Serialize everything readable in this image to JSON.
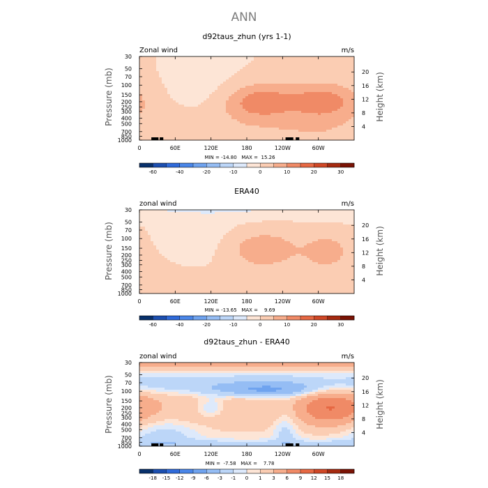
{
  "page_title": "ANN",
  "chart_data": [
    {
      "type": "heatmap",
      "title": "d92taus_zhun (yrs 1-1)",
      "left_label": "Zonal wind",
      "right_label": "m/s",
      "ylabel": "Pressure (mb)",
      "ylabel_right": "Height (km)",
      "x_ticks": [
        "0",
        "60E",
        "120E",
        "180",
        "120W",
        "60W"
      ],
      "x_tick_lon": [
        0,
        60,
        120,
        180,
        240,
        300
      ],
      "xlim": [
        0,
        360
      ],
      "y_ticks": [
        "30",
        "50",
        "70",
        "100",
        "150",
        "200",
        "250",
        "300",
        "400",
        "500",
        "700",
        "850",
        "1000"
      ],
      "y_tick_p": [
        30,
        50,
        70,
        100,
        150,
        200,
        250,
        300,
        400,
        500,
        700,
        850,
        1000
      ],
      "ylim": [
        1000,
        30
      ],
      "height_ticks": [
        "4",
        "8",
        "12",
        "16",
        "20"
      ],
      "height_km": [
        4,
        8,
        12,
        16,
        20
      ],
      "stats": "MIN = -14.80   MAX =  15.26",
      "min": -14.8,
      "max": 15.26,
      "colorbar": {
        "labels": [
          "-60",
          "-40",
          "-20",
          "-10",
          "0",
          "10",
          "20",
          "30"
        ],
        "label_boundary_index": [
          1,
          3,
          5,
          7,
          9,
          11,
          13,
          15
        ],
        "colors": [
          "#08306b",
          "#1c4fb0",
          "#2f6ad9",
          "#4a86e8",
          "#6fa3ef",
          "#95bdf4",
          "#bcd6f8",
          "#dde9fb",
          "#fde5d6",
          "#fbcdb3",
          "#f7ad8c",
          "#f08a66",
          "#e66843",
          "#cf4726",
          "#a52a10",
          "#7a1305"
        ]
      },
      "mountains": [
        [
          20,
          32
        ],
        [
          34,
          40
        ],
        [
          245,
          258
        ],
        [
          262,
          268
        ]
      ],
      "features": [
        {
          "lon": 150,
          "p": 400,
          "lon_w": 190,
          "ln_w": 1.0,
          "v": 2
        },
        {
          "lon": 15,
          "p": 850,
          "lon_w": 120,
          "ln_w": 0.45,
          "v": 2
        },
        {
          "lon": 280,
          "p": 700,
          "lon_w": 80,
          "ln_w": 0.35,
          "v": 1.5
        },
        {
          "lon": 200,
          "p": 200,
          "lon_w": 45,
          "ln_w": 0.55,
          "v": 13
        },
        {
          "lon": 310,
          "p": 200,
          "lon_w": 40,
          "ln_w": 0.55,
          "v": 12
        },
        {
          "lon": 120,
          "p": 150,
          "lon_w": 55,
          "ln_w": 0.7,
          "v": -3.5
        },
        {
          "lon": 60,
          "p": 850,
          "lon_w": 60,
          "ln_w": 0.3,
          "v": -1.5
        }
      ]
    },
    {
      "type": "heatmap",
      "title": "ERA40",
      "left_label": "zonal wind",
      "right_label": "m/s",
      "ylabel": "Pressure (mb)",
      "ylabel_right": "Height (km)",
      "x_ticks": [
        "0",
        "60E",
        "120E",
        "180",
        "120W",
        "60W"
      ],
      "x_tick_lon": [
        0,
        60,
        120,
        180,
        240,
        300
      ],
      "xlim": [
        0,
        360
      ],
      "y_ticks": [
        "30",
        "50",
        "70",
        "100",
        "150",
        "200",
        "250",
        "300",
        "400",
        "500",
        "700",
        "850",
        "1000"
      ],
      "y_tick_p": [
        30,
        50,
        70,
        100,
        150,
        200,
        250,
        300,
        400,
        500,
        700,
        850,
        1000
      ],
      "ylim": [
        1000,
        30
      ],
      "height_ticks": [
        "4",
        "8",
        "12",
        "16",
        "20"
      ],
      "height_km": [
        4,
        8,
        12,
        16,
        20
      ],
      "stats": "MIN = -13.65   MAX =    9.69",
      "min": -13.65,
      "max": 9.69,
      "colorbar": {
        "labels": [
          "-60",
          "-40",
          "-20",
          "-10",
          "0",
          "10",
          "20",
          "30"
        ],
        "label_boundary_index": [
          1,
          3,
          5,
          7,
          9,
          11,
          13,
          15
        ],
        "colors": [
          "#08306b",
          "#1c4fb0",
          "#2f6ad9",
          "#4a86e8",
          "#6fa3ef",
          "#95bdf4",
          "#bcd6f8",
          "#dde9fb",
          "#fde5d6",
          "#fbcdb3",
          "#f7ad8c",
          "#f08a66",
          "#e66843",
          "#cf4726",
          "#a52a10",
          "#7a1305"
        ]
      },
      "mountains": [],
      "features": [
        {
          "lon": 180,
          "p": 300,
          "lon_w": 200,
          "ln_w": 1.1,
          "v": 1.8
        },
        {
          "lon": 200,
          "p": 30,
          "lon_w": 600,
          "ln_w": 0.25,
          "v": -5
        },
        {
          "lon": 200,
          "p": 150,
          "lon_w": 45,
          "ln_w": 0.55,
          "v": 8.5
        },
        {
          "lon": 315,
          "p": 170,
          "lon_w": 25,
          "ln_w": 0.45,
          "v": 7
        },
        {
          "lon": 120,
          "p": 130,
          "lon_w": 60,
          "ln_w": 0.8,
          "v": -4
        },
        {
          "lon": 60,
          "p": 850,
          "lon_w": 55,
          "ln_w": 0.3,
          "v": 1.2
        },
        {
          "lon": 15,
          "p": 1000,
          "lon_w": 20,
          "ln_w": 0.15,
          "v": -1.2
        }
      ]
    },
    {
      "type": "heatmap",
      "title": "d92taus_zhun - ERA40",
      "left_label": "zonal wind",
      "right_label": "m/s",
      "ylabel": "Pressure (mb)",
      "ylabel_right": "Height (km)",
      "x_ticks": [
        "0",
        "60E",
        "120E",
        "180",
        "120W",
        "60W"
      ],
      "x_tick_lon": [
        0,
        60,
        120,
        180,
        240,
        300
      ],
      "xlim": [
        0,
        360
      ],
      "y_ticks": [
        "30",
        "50",
        "70",
        "100",
        "150",
        "200",
        "250",
        "300",
        "400",
        "500",
        "700",
        "850",
        "1000"
      ],
      "y_tick_p": [
        30,
        50,
        70,
        100,
        150,
        200,
        250,
        300,
        400,
        500,
        700,
        850,
        1000
      ],
      "ylim": [
        1000,
        30
      ],
      "height_ticks": [
        "4",
        "8",
        "12",
        "16",
        "20"
      ],
      "height_km": [
        4,
        8,
        12,
        16,
        20
      ],
      "stats": "MIN =  -7.58   MAX =    7.78",
      "min": -7.58,
      "max": 7.78,
      "colorbar": {
        "labels": [
          "-18",
          "-15",
          "-12",
          "-9",
          "-6",
          "-3",
          "-1",
          "0",
          "1",
          "3",
          "6",
          "9",
          "12",
          "15",
          "18"
        ],
        "label_boundary_index": [
          1,
          2,
          3,
          4,
          5,
          6,
          7,
          8,
          9,
          10,
          11,
          12,
          13,
          14,
          15
        ],
        "colors": [
          "#08306b",
          "#1c4fb0",
          "#2f6ad9",
          "#4a86e8",
          "#6fa3ef",
          "#95bdf4",
          "#bcd6f8",
          "#dde9fb",
          "#fde5d6",
          "#fbcdb3",
          "#f7ad8c",
          "#f08a66",
          "#e66843",
          "#cf4726",
          "#a52a10",
          "#7a1305"
        ]
      },
      "mountains": [
        [
          20,
          32
        ],
        [
          34,
          40
        ],
        [
          245,
          258
        ],
        [
          262,
          268
        ]
      ],
      "features": [
        {
          "lon": 180,
          "p": 30,
          "lon_w": 900,
          "ln_w": 0.22,
          "v": 4.5
        },
        {
          "lon": 170,
          "p": 75,
          "lon_w": 900,
          "ln_w": 0.3,
          "v": -2.5
        },
        {
          "lon": 210,
          "p": 95,
          "lon_w": 60,
          "ln_w": 0.2,
          "v": -5.5
        },
        {
          "lon": 320,
          "p": 200,
          "lon_w": 40,
          "ln_w": 0.55,
          "v": 8
        },
        {
          "lon": 80,
          "p": 200,
          "lon_w": 80,
          "ln_w": 0.6,
          "v": 2.2
        },
        {
          "lon": 200,
          "p": 250,
          "lon_w": 70,
          "ln_w": 0.6,
          "v": 2
        },
        {
          "lon": 120,
          "p": 200,
          "lon_w": 18,
          "ln_w": 0.3,
          "v": -3.5
        },
        {
          "lon": 40,
          "p": 600,
          "lon_w": 40,
          "ln_w": 0.5,
          "v": -2.2
        },
        {
          "lon": 245,
          "p": 450,
          "lon_w": 15,
          "ln_w": 0.7,
          "v": -2.5
        },
        {
          "lon": 180,
          "p": 900,
          "lon_w": 900,
          "ln_w": 0.12,
          "v": -1.8
        }
      ]
    }
  ]
}
